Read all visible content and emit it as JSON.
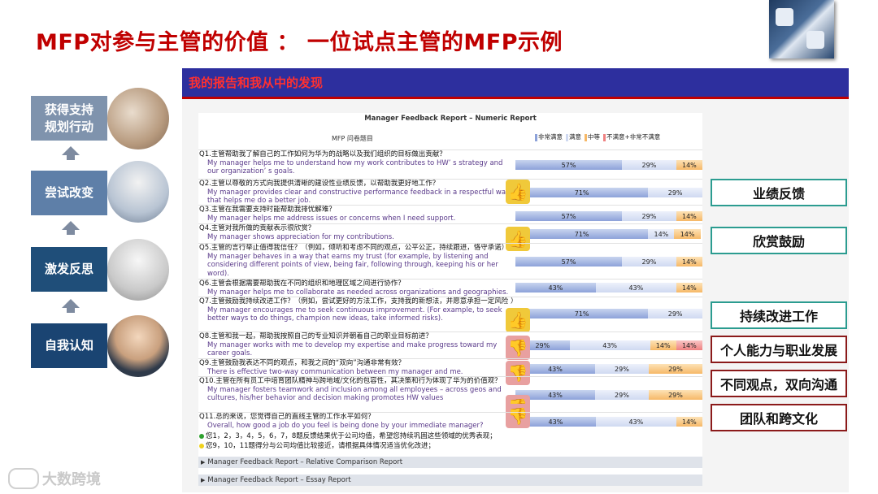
{
  "title": "MFP对参与主管的价值 ： 一位试点主管的MFP示例",
  "flow": {
    "steps": [
      {
        "label": "获得支持\n规划行动",
        "color": "#7f93ad"
      },
      {
        "label": "尝试改变",
        "color": "#5e7fa8"
      },
      {
        "label": "激发反思",
        "color": "#1f4e79"
      },
      {
        "label": "自我认知",
        "color": "#1a4472"
      }
    ]
  },
  "panel": {
    "header": "我的报告和我从中的发现"
  },
  "report": {
    "title": "Manager Feedback Report  –  Numeric Report",
    "column_header": "MFP 问卷题目",
    "legend": [
      {
        "label": "非常满意",
        "color": "#8da2d9"
      },
      {
        "label": "满意",
        "color": "#cfd9f1"
      },
      {
        "label": "中等",
        "color": "#f6b867"
      },
      {
        "label": "不满意+非常不满意",
        "color": "#ef8181"
      }
    ],
    "questions": [
      {
        "cn": "Q1.主管帮助我了解自己的工作如何为华为的战略以及我们组织的目标做出贡献？",
        "en": "My manager helps me to understand how my work contributes to HW’ s strategy and our organization’ s goals.",
        "vs": "57%",
        "s": "29%",
        "n": "14%",
        "d": ""
      },
      {
        "cn": "Q2.主管以尊敬的方式向我提供清晰的建设性业绩反馈，以帮助我更好地工作？",
        "en": "My manager provides clear and constructive performance feedback in a respectful way that helps me do a better job.",
        "vs": "71%",
        "s": "29%",
        "n": "",
        "d": ""
      },
      {
        "cn": "Q3.主管在我需要支持时能帮助我排忧解难？",
        "en": "My manager helps me address issues or concerns when I need support.",
        "vs": "57%",
        "s": "29%",
        "n": "14%",
        "d": ""
      },
      {
        "cn": "Q4.主管对我所做的贡献表示很欣赏？",
        "en": "My manager shows appreciation for my contributions.",
        "vs": "71%",
        "s": "14%",
        "n": "14%",
        "d": ""
      },
      {
        "cn": "Q5.主管的言行举止值得我信任？（例如，倾听和考虑不同的观点，公平公正，持续跟进，恪守承诺）",
        "en": "My manager behaves in a way that earns my trust (for example, by listening and considering different points of view, being fair, following through, keeping his or her word).",
        "vs": "57%",
        "s": "29%",
        "n": "14%",
        "d": ""
      },
      {
        "cn": "Q6.主管会根据需要帮助我在不同的组织和地理区域之间进行协作？",
        "en": "My manager helps me to collaborate as needed across organizations and geographies.",
        "vs": "43%",
        "s": "43%",
        "n": "14%",
        "d": ""
      },
      {
        "cn": "Q7.主管鼓励我持续改进工作？（例如，尝试更好的方法工作，支持我的新想法，并愿意承担一定风险 ）",
        "en": "My manager encourages me to seek continuous improvement. (For example, to seek better ways to do things, champion new ideas, take informed risks).",
        "vs": "71%",
        "s": "29%",
        "n": "",
        "d": ""
      },
      {
        "cn": "Q8.主管和我一起，帮助我按照自己的专业知识并朝着自己的职业目标前进？",
        "en": "My manager works with me to develop my expertise and make progress toward my career goals.",
        "vs": "29%",
        "s": "43%",
        "n": "14%",
        "d": "14%"
      },
      {
        "cn": "Q9.主管鼓励我表达不同的观点，和我之间的“双向”沟通非常有效？",
        "en": "There is effective two-way communication between my manager and me.",
        "vs": "43%",
        "s": "29%",
        "n": "29%",
        "d": ""
      },
      {
        "cn": "Q10.主管在所有员工中培育团队精神与跨地域/文化的包容性，其决策和行为体现了华为的价值观？",
        "en": "My manager fosters teamwork and inclusion among all employees  –  across geos and cultures, his/her behavior and decision making promotes HW values",
        "vs": "43%",
        "s": "29%",
        "n": "29%",
        "d": ""
      },
      {
        "cn": "Q11.总的来说，您觉得自己的直线主管的工作水平如何？",
        "en": "Overall, how good a job do you feel is being done by your immediate manager?",
        "vs": "43%",
        "s": "43%",
        "n": "14%",
        "d": ""
      }
    ],
    "notes": [
      {
        "text": "您1，2，3，4，5，6，7，8题反馈结果优于公司均值，希望您持续巩固这些领域的优秀表现；",
        "color": "#2ea12e"
      },
      {
        "text": "您9，10，11题得分与公司均值比较接近，请根据具体情况适当优化改进；",
        "color": "#f0d21c"
      }
    ]
  },
  "subreports": [
    "Manager Feedback Report  –  Relative Comparison Report",
    "Manager Feedback Report  –  Essay Report"
  ],
  "labels": [
    {
      "text": "业绩反馈",
      "style": "green"
    },
    {
      "text": "欣赏鼓励",
      "style": "green"
    },
    {
      "text": "持续改进工作",
      "style": "green"
    },
    {
      "text": "个人能力与职业发展",
      "style": "red"
    },
    {
      "text": "不同观点，双向沟通",
      "style": "red"
    },
    {
      "text": "团队和跨文化",
      "style": "red"
    }
  ],
  "watermark": "大数跨境",
  "icons": {
    "thumb_up": "thumbs-up-icon",
    "thumb_down": "thumbs-down-icon",
    "expand": "triangle-right-icon"
  }
}
